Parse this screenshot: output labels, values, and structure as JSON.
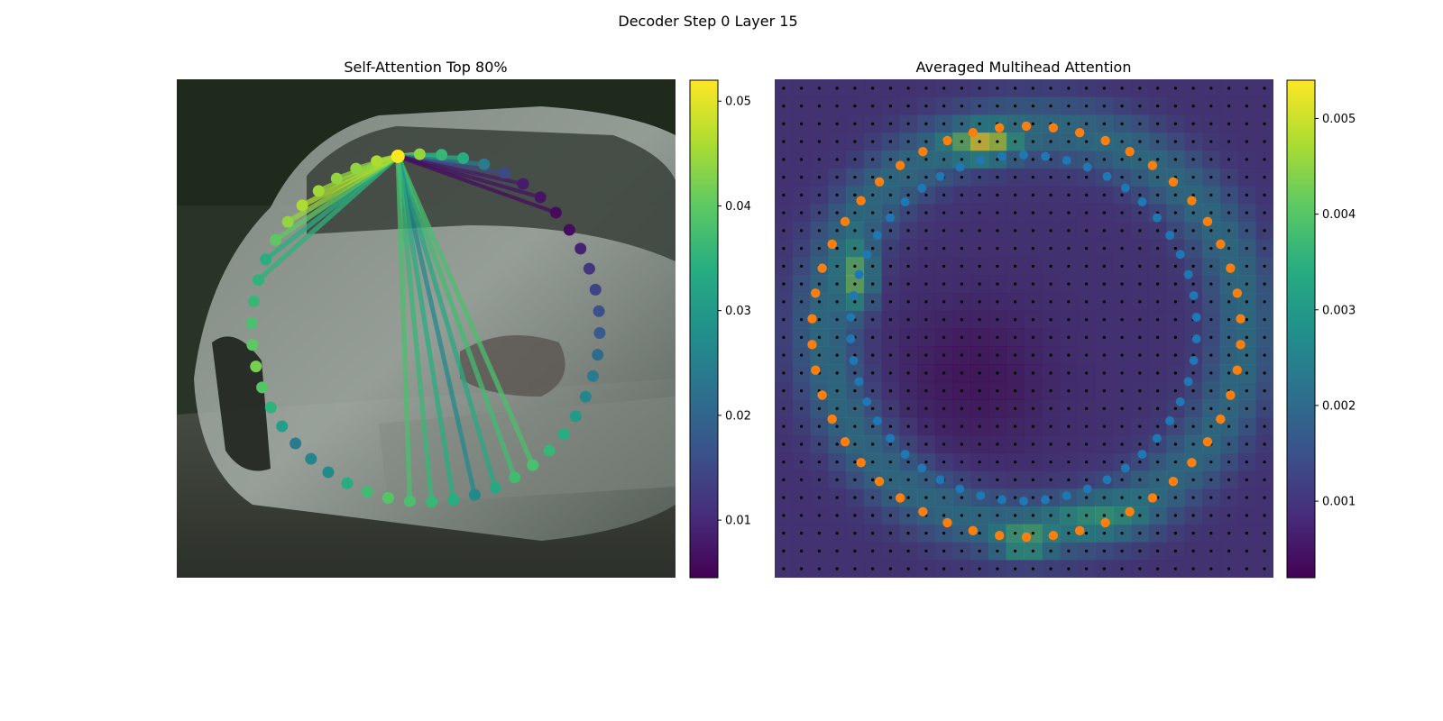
{
  "figure": {
    "suptitle": "Decoder Step 0 Layer 15"
  },
  "chart_data": [
    {
      "type": "scatter",
      "title": "Self-Attention Top 80%",
      "description_colormap": "viridis",
      "colorbar": {
        "min": 0.0045,
        "max": 0.052,
        "ticks": [
          "0.01",
          "0.02",
          "0.03",
          "0.04",
          "0.05"
        ],
        "tick_values": [
          0.01,
          0.02,
          0.03,
          0.04,
          0.05
        ]
      },
      "points": {
        "count": 50,
        "source_index": 0,
        "attention": [
          0.052,
          0.044,
          0.036,
          0.034,
          0.024,
          0.015,
          0.008,
          0.007,
          0.006,
          0.006,
          0.009,
          0.012,
          0.014,
          0.016,
          0.018,
          0.021,
          0.024,
          0.026,
          0.03,
          0.034,
          0.036,
          0.038,
          0.037,
          0.033,
          0.027,
          0.034,
          0.036,
          0.038,
          0.039,
          0.037,
          0.034,
          0.027,
          0.026,
          0.024,
          0.031,
          0.035,
          0.039,
          0.042,
          0.04,
          0.038,
          0.036,
          0.035,
          0.034,
          0.04,
          0.044,
          0.046,
          0.045,
          0.044,
          0.044,
          0.046
        ]
      },
      "edges_weight_note": "lines from source point to top-attended points",
      "edge_targets": [
        1,
        2,
        3,
        4,
        5,
        6,
        7,
        8,
        41,
        42,
        43,
        44,
        45,
        46,
        47,
        48,
        49,
        21,
        22,
        23,
        24,
        25,
        26,
        27
      ]
    },
    {
      "type": "heatmap",
      "title": "Averaged Multihead Attention",
      "description_colormap": "viridis",
      "colorbar": {
        "min": 0.0002,
        "max": 0.0054,
        "ticks": [
          "0.001",
          "0.002",
          "0.003",
          "0.004",
          "0.005"
        ],
        "tick_values": [
          0.001,
          0.002,
          0.003,
          0.004,
          0.005
        ]
      },
      "grid_size": [
        28,
        28
      ],
      "series": [
        {
          "name": "",
          "color": "#ff7f0e",
          "count": 50
        },
        {
          "name": "",
          "color": "#1f77b4",
          "count": 50
        }
      ]
    }
  ],
  "colors": {
    "orange": "#ff7f0e",
    "blue": "#1f77b4",
    "grid_dot": "#000000"
  }
}
